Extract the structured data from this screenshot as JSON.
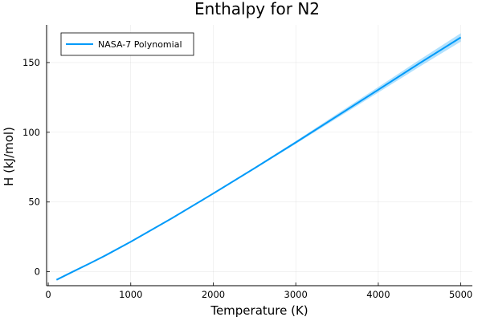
{
  "chart_data": {
    "type": "line",
    "title": "Enthalpy for N2",
    "xlabel": "Temperature (K)",
    "ylabel": "H (kJ/mol)",
    "xlim": [
      -20,
      5140
    ],
    "ylim": [
      -10,
      177
    ],
    "xticks": [
      0,
      1000,
      2000,
      3000,
      4000,
      5000
    ],
    "yticks": [
      0,
      50,
      100,
      150
    ],
    "grid": true,
    "legend_position": "top-left",
    "series": [
      {
        "name": "NASA-7 Polynomial",
        "color": "#009af9",
        "x": [
          100,
          300,
          500,
          700,
          1000,
          1500,
          2000,
          2500,
          3000,
          3500,
          4000,
          4500,
          5000
        ],
        "y": [
          -5.8,
          0.1,
          5.9,
          11.9,
          21.5,
          38.4,
          56.1,
          74.2,
          92.7,
          111.6,
          130.5,
          149.5,
          168.0
        ],
        "band_halfwidth": [
          0,
          0,
          0,
          0,
          0,
          0.1,
          0.3,
          0.6,
          1.0,
          1.5,
          2.0,
          2.5,
          3.0
        ]
      }
    ]
  }
}
